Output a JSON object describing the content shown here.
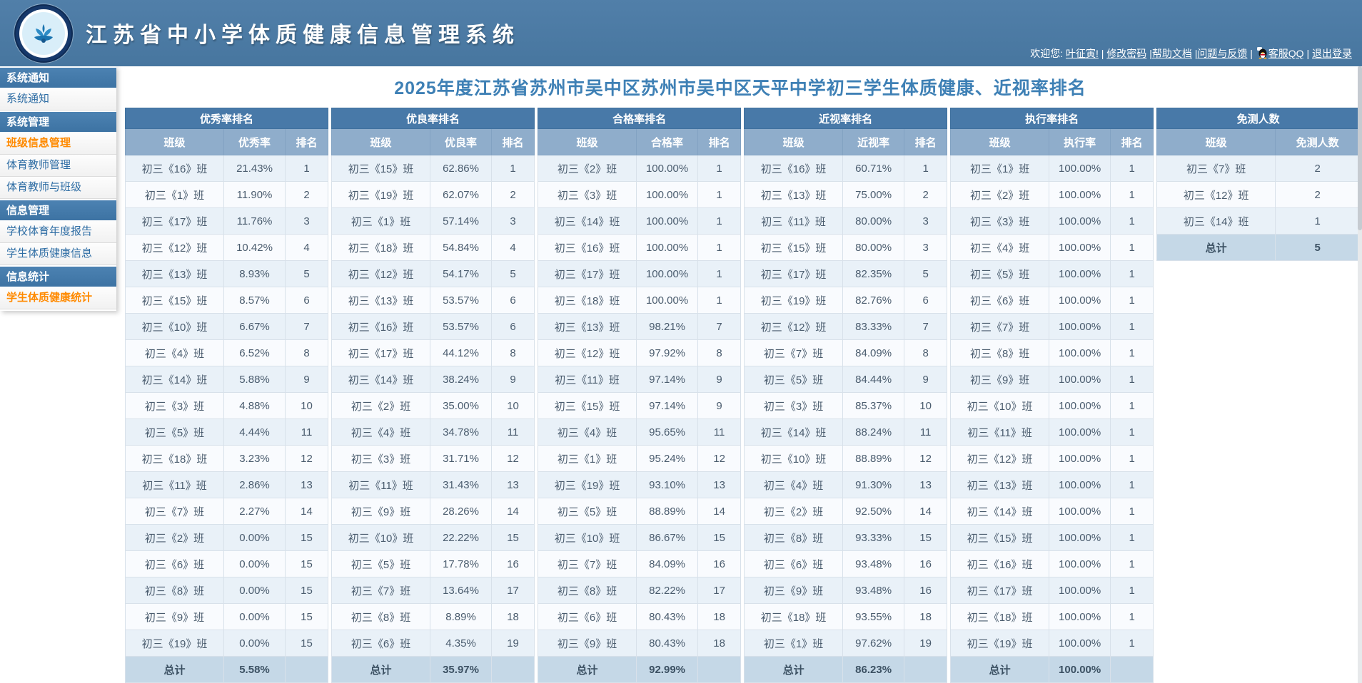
{
  "header": {
    "app_title": "江苏省中小学体质健康信息管理系统",
    "user_bar_segments": [
      {
        "type": "text",
        "text": "欢迎您: "
      },
      {
        "type": "link",
        "name": "user-name-link",
        "text": "叶征寅!"
      },
      {
        "type": "text",
        "text": " | "
      },
      {
        "type": "link",
        "name": "change-password-link",
        "text": "修改密码"
      },
      {
        "type": "text",
        "text": " |"
      },
      {
        "type": "link",
        "name": "help-doc-link",
        "text": "帮助文档"
      },
      {
        "type": "text",
        "text": " |"
      },
      {
        "type": "link",
        "name": "feedback-link",
        "text": "问题与反馈"
      },
      {
        "type": "text",
        "text": " | "
      },
      {
        "type": "qq-icon"
      },
      {
        "type": "link",
        "name": "service-qq-link",
        "text": "客服QQ"
      },
      {
        "type": "text",
        "text": " | "
      },
      {
        "type": "link",
        "name": "logout-link",
        "text": "退出登录"
      }
    ]
  },
  "sidebar": {
    "items": [
      {
        "type": "header",
        "label": "系统通知"
      },
      {
        "type": "item",
        "label": "系统通知",
        "active": false
      },
      {
        "type": "header",
        "label": "系统管理"
      },
      {
        "type": "item",
        "label": "班级信息管理",
        "active": true
      },
      {
        "type": "item",
        "label": "体育教师管理",
        "active": false
      },
      {
        "type": "item",
        "label": "体育教师与班级",
        "active": false
      },
      {
        "type": "header",
        "label": "信息管理"
      },
      {
        "type": "item",
        "label": "学校体育年度报告",
        "active": false
      },
      {
        "type": "item",
        "label": "学生体质健康信息",
        "active": false
      },
      {
        "type": "header",
        "label": "信息统计"
      },
      {
        "type": "item",
        "label": "学生体质健康统计",
        "active": true
      }
    ]
  },
  "main": {
    "page_title": "2025年度江苏省苏州市吴中区苏州市吴中区天平中学初三学生体质健康、近视率排名",
    "tables": [
      {
        "title": "优秀率排名",
        "columns": [
          "班级",
          "优秀率",
          "排名"
        ],
        "rows": [
          [
            "初三《16》班",
            "21.43%",
            "1"
          ],
          [
            "初三《1》班",
            "11.90%",
            "2"
          ],
          [
            "初三《17》班",
            "11.76%",
            "3"
          ],
          [
            "初三《12》班",
            "10.42%",
            "4"
          ],
          [
            "初三《13》班",
            "8.93%",
            "5"
          ],
          [
            "初三《15》班",
            "8.57%",
            "6"
          ],
          [
            "初三《10》班",
            "6.67%",
            "7"
          ],
          [
            "初三《4》班",
            "6.52%",
            "8"
          ],
          [
            "初三《14》班",
            "5.88%",
            "9"
          ],
          [
            "初三《3》班",
            "4.88%",
            "10"
          ],
          [
            "初三《5》班",
            "4.44%",
            "11"
          ],
          [
            "初三《18》班",
            "3.23%",
            "12"
          ],
          [
            "初三《11》班",
            "2.86%",
            "13"
          ],
          [
            "初三《7》班",
            "2.27%",
            "14"
          ],
          [
            "初三《2》班",
            "0.00%",
            "15"
          ],
          [
            "初三《6》班",
            "0.00%",
            "15"
          ],
          [
            "初三《8》班",
            "0.00%",
            "15"
          ],
          [
            "初三《9》班",
            "0.00%",
            "15"
          ],
          [
            "初三《19》班",
            "0.00%",
            "15"
          ]
        ],
        "total": [
          "总计",
          "5.58%",
          ""
        ]
      },
      {
        "title": "优良率排名",
        "columns": [
          "班级",
          "优良率",
          "排名"
        ],
        "rows": [
          [
            "初三《15》班",
            "62.86%",
            "1"
          ],
          [
            "初三《19》班",
            "62.07%",
            "2"
          ],
          [
            "初三《1》班",
            "57.14%",
            "3"
          ],
          [
            "初三《18》班",
            "54.84%",
            "4"
          ],
          [
            "初三《12》班",
            "54.17%",
            "5"
          ],
          [
            "初三《13》班",
            "53.57%",
            "6"
          ],
          [
            "初三《16》班",
            "53.57%",
            "6"
          ],
          [
            "初三《17》班",
            "44.12%",
            "8"
          ],
          [
            "初三《14》班",
            "38.24%",
            "9"
          ],
          [
            "初三《2》班",
            "35.00%",
            "10"
          ],
          [
            "初三《4》班",
            "34.78%",
            "11"
          ],
          [
            "初三《3》班",
            "31.71%",
            "12"
          ],
          [
            "初三《11》班",
            "31.43%",
            "13"
          ],
          [
            "初三《9》班",
            "28.26%",
            "14"
          ],
          [
            "初三《10》班",
            "22.22%",
            "15"
          ],
          [
            "初三《5》班",
            "17.78%",
            "16"
          ],
          [
            "初三《7》班",
            "13.64%",
            "17"
          ],
          [
            "初三《8》班",
            "8.89%",
            "18"
          ],
          [
            "初三《6》班",
            "4.35%",
            "19"
          ]
        ],
        "total": [
          "总计",
          "35.97%",
          ""
        ]
      },
      {
        "title": "合格率排名",
        "columns": [
          "班级",
          "合格率",
          "排名"
        ],
        "rows": [
          [
            "初三《2》班",
            "100.00%",
            "1"
          ],
          [
            "初三《3》班",
            "100.00%",
            "1"
          ],
          [
            "初三《14》班",
            "100.00%",
            "1"
          ],
          [
            "初三《16》班",
            "100.00%",
            "1"
          ],
          [
            "初三《17》班",
            "100.00%",
            "1"
          ],
          [
            "初三《18》班",
            "100.00%",
            "1"
          ],
          [
            "初三《13》班",
            "98.21%",
            "7"
          ],
          [
            "初三《12》班",
            "97.92%",
            "8"
          ],
          [
            "初三《11》班",
            "97.14%",
            "9"
          ],
          [
            "初三《15》班",
            "97.14%",
            "9"
          ],
          [
            "初三《4》班",
            "95.65%",
            "11"
          ],
          [
            "初三《1》班",
            "95.24%",
            "12"
          ],
          [
            "初三《19》班",
            "93.10%",
            "13"
          ],
          [
            "初三《5》班",
            "88.89%",
            "14"
          ],
          [
            "初三《10》班",
            "86.67%",
            "15"
          ],
          [
            "初三《7》班",
            "84.09%",
            "16"
          ],
          [
            "初三《8》班",
            "82.22%",
            "17"
          ],
          [
            "初三《6》班",
            "80.43%",
            "18"
          ],
          [
            "初三《9》班",
            "80.43%",
            "18"
          ]
        ],
        "total": [
          "总计",
          "92.99%",
          ""
        ]
      },
      {
        "title": "近视率排名",
        "columns": [
          "班级",
          "近视率",
          "排名"
        ],
        "rows": [
          [
            "初三《16》班",
            "60.71%",
            "1"
          ],
          [
            "初三《13》班",
            "75.00%",
            "2"
          ],
          [
            "初三《11》班",
            "80.00%",
            "3"
          ],
          [
            "初三《15》班",
            "80.00%",
            "3"
          ],
          [
            "初三《17》班",
            "82.35%",
            "5"
          ],
          [
            "初三《19》班",
            "82.76%",
            "6"
          ],
          [
            "初三《12》班",
            "83.33%",
            "7"
          ],
          [
            "初三《7》班",
            "84.09%",
            "8"
          ],
          [
            "初三《5》班",
            "84.44%",
            "9"
          ],
          [
            "初三《3》班",
            "85.37%",
            "10"
          ],
          [
            "初三《14》班",
            "88.24%",
            "11"
          ],
          [
            "初三《10》班",
            "88.89%",
            "12"
          ],
          [
            "初三《4》班",
            "91.30%",
            "13"
          ],
          [
            "初三《2》班",
            "92.50%",
            "14"
          ],
          [
            "初三《8》班",
            "93.33%",
            "15"
          ],
          [
            "初三《6》班",
            "93.48%",
            "16"
          ],
          [
            "初三《9》班",
            "93.48%",
            "16"
          ],
          [
            "初三《18》班",
            "93.55%",
            "18"
          ],
          [
            "初三《1》班",
            "97.62%",
            "19"
          ]
        ],
        "total": [
          "总计",
          "86.23%",
          ""
        ]
      },
      {
        "title": "执行率排名",
        "columns": [
          "班级",
          "执行率",
          "排名"
        ],
        "rows": [
          [
            "初三《1》班",
            "100.00%",
            "1"
          ],
          [
            "初三《2》班",
            "100.00%",
            "1"
          ],
          [
            "初三《3》班",
            "100.00%",
            "1"
          ],
          [
            "初三《4》班",
            "100.00%",
            "1"
          ],
          [
            "初三《5》班",
            "100.00%",
            "1"
          ],
          [
            "初三《6》班",
            "100.00%",
            "1"
          ],
          [
            "初三《7》班",
            "100.00%",
            "1"
          ],
          [
            "初三《8》班",
            "100.00%",
            "1"
          ],
          [
            "初三《9》班",
            "100.00%",
            "1"
          ],
          [
            "初三《10》班",
            "100.00%",
            "1"
          ],
          [
            "初三《11》班",
            "100.00%",
            "1"
          ],
          [
            "初三《12》班",
            "100.00%",
            "1"
          ],
          [
            "初三《13》班",
            "100.00%",
            "1"
          ],
          [
            "初三《14》班",
            "100.00%",
            "1"
          ],
          [
            "初三《15》班",
            "100.00%",
            "1"
          ],
          [
            "初三《16》班",
            "100.00%",
            "1"
          ],
          [
            "初三《17》班",
            "100.00%",
            "1"
          ],
          [
            "初三《18》班",
            "100.00%",
            "1"
          ],
          [
            "初三《19》班",
            "100.00%",
            "1"
          ]
        ],
        "total": [
          "总计",
          "100.00%",
          ""
        ]
      },
      {
        "title": "免测人数",
        "columns": [
          "班级",
          "免测人数"
        ],
        "rows": [
          [
            "初三《7》班",
            "2"
          ],
          [
            "初三《12》班",
            "2"
          ],
          [
            "初三《14》班",
            "1"
          ]
        ],
        "total": [
          "总计",
          "5"
        ]
      }
    ]
  },
  "colors": {
    "header_blue": "#4B7CA8",
    "table_group_header": "#4879A8",
    "table_column_header": "#8FADCB",
    "row_stripe": "#E9F1F8",
    "total_row": "#C5D8E7",
    "active_menu_orange": "#FF8A00",
    "page_title_blue": "#3E80B5"
  }
}
